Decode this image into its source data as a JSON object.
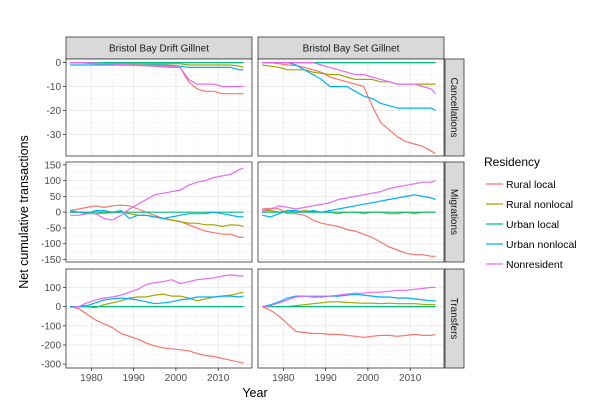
{
  "chart_data": {
    "type": "line",
    "ylabel": "Net cumulative transactions",
    "xlabel": "Year",
    "xlim": [
      1974,
      2018
    ],
    "x_ticks": [
      1980,
      1990,
      2000,
      2010
    ],
    "x_tick_labels": [
      "1980",
      "1990",
      "2000",
      "2010"
    ],
    "grid": true,
    "columns": [
      "Bristol Bay Drift Gillnet",
      "Bristol Bay Set Gillnet"
    ],
    "rows": [
      {
        "name": "Cancellations",
        "ylim": [
          -39,
          1.5
        ],
        "y_ticks": [
          0,
          -10,
          -20,
          -30
        ],
        "y_tick_labels": [
          "0",
          "-10",
          "-20",
          "-30"
        ]
      },
      {
        "name": "Migrations",
        "ylim": [
          -158,
          159
        ],
        "y_ticks": [
          150,
          100,
          50,
          0,
          -50,
          -100,
          -150
        ],
        "y_tick_labels": [
          "150",
          "100",
          "50",
          "0",
          "-50",
          "-100",
          "-150"
        ]
      },
      {
        "name": "Transfers",
        "ylim": [
          -320,
          196
        ],
        "y_ticks": [
          100,
          0,
          -100,
          -200,
          -300
        ],
        "y_tick_labels": [
          "100",
          "0",
          "-100",
          "-200",
          "-300"
        ]
      }
    ],
    "legend": {
      "title": "Residency",
      "position": "right",
      "entries": [
        "Rural local",
        "Rural nonlocal",
        "Urban local",
        "Urban nonlocal",
        "Nonresident"
      ],
      "colors": [
        "#F8766D",
        "#A3A500",
        "#00BF7D",
        "#00B0F6",
        "#E76BF3"
      ]
    },
    "x": [
      1975,
      1977,
      1979,
      1981,
      1983,
      1985,
      1987,
      1989,
      1991,
      1993,
      1995,
      1997,
      1999,
      2001,
      2003,
      2005,
      2007,
      2009,
      2011,
      2013,
      2015,
      2016
    ],
    "panels": [
      {
        "row": "Cancellations",
        "column": "Bristol Bay Drift Gillnet",
        "series": [
          {
            "name": "Rural local",
            "values": [
              0,
              0,
              -0.3,
              -0.5,
              -0.6,
              -0.8,
              -1,
              -1.1,
              -1.2,
              -1.4,
              -1.6,
              -1.8,
              -2,
              -2,
              -8,
              -11,
              -12,
              -12,
              -13,
              -13,
              -13,
              -13
            ]
          },
          {
            "name": "Rural nonlocal",
            "values": [
              0,
              0,
              0,
              -0.2,
              -0.3,
              -0.4,
              -0.5,
              -0.5,
              -0.5,
              -0.5,
              -0.5,
              -0.5,
              -0.5,
              -0.5,
              -1,
              -1,
              -1,
              -1,
              -1,
              -1,
              -1.5,
              -2
            ]
          },
          {
            "name": "Urban local",
            "values": [
              0,
              0,
              0,
              0,
              0,
              0,
              0,
              0,
              0,
              0,
              0,
              0,
              0,
              0,
              0,
              0,
              0,
              0,
              0,
              0,
              0,
              0
            ]
          },
          {
            "name": "Urban nonlocal",
            "values": [
              -1,
              -1,
              -1,
              -1,
              -1,
              -1,
              -1,
              -1,
              -1,
              -1,
              -1,
              -1,
              -1.2,
              -1.5,
              -2,
              -2,
              -2,
              -2,
              -2,
              -2,
              -3,
              -3
            ]
          },
          {
            "name": "Nonresident",
            "values": [
              0,
              0,
              0,
              -0.2,
              -0.4,
              -0.6,
              -0.8,
              -1,
              -1,
              -1.2,
              -1.4,
              -1.5,
              -1.5,
              -2,
              -7,
              -9,
              -9,
              -9,
              -10,
              -10,
              -10,
              -10
            ]
          }
        ]
      },
      {
        "row": "Cancellations",
        "column": "Bristol Bay Set Gillnet",
        "series": [
          {
            "name": "Rural local",
            "values": [
              0,
              0,
              -0.5,
              -1,
              -1.2,
              -2,
              -3,
              -4,
              -6,
              -7,
              -8,
              -9,
              -10,
              -18,
              -25,
              -28,
              -31,
              -33,
              -34,
              -35,
              -37,
              -38
            ]
          },
          {
            "name": "Rural nonlocal",
            "values": [
              -1,
              -1.5,
              -2,
              -3,
              -3,
              -3,
              -4,
              -4.5,
              -5,
              -5,
              -6,
              -7,
              -7,
              -7,
              -8,
              -8,
              -9,
              -9,
              -9,
              -9,
              -9,
              -9
            ]
          },
          {
            "name": "Urban local",
            "values": [
              0,
              0,
              0,
              0,
              0,
              0,
              0,
              0,
              0,
              0,
              0,
              0,
              0,
              0,
              0,
              0,
              0,
              0,
              0,
              0,
              0,
              0
            ]
          },
          {
            "name": "Urban nonlocal",
            "values": [
              0,
              0,
              0,
              0,
              -1,
              -3,
              -5,
              -7,
              -10,
              -10,
              -10,
              -12,
              -14,
              -15,
              -17,
              -18,
              -19,
              -19,
              -19,
              -19,
              -19,
              -20
            ]
          },
          {
            "name": "Nonresident",
            "values": [
              0,
              0,
              0,
              0,
              0,
              0,
              0,
              -1,
              -2,
              -3,
              -4,
              -5,
              -5,
              -6,
              -7,
              -8,
              -9,
              -9,
              -9,
              -10,
              -11,
              -13
            ]
          }
        ]
      },
      {
        "row": "Migrations",
        "column": "Bristol Bay Drift Gillnet",
        "series": [
          {
            "name": "Rural local",
            "values": [
              5,
              10,
              15,
              20,
              15,
              20,
              22,
              20,
              10,
              0,
              -10,
              -20,
              -25,
              -30,
              -40,
              -50,
              -60,
              -65,
              -70,
              -70,
              -80,
              -80
            ]
          },
          {
            "name": "Rural nonlocal",
            "values": [
              0,
              0,
              -2,
              -5,
              -3,
              -2,
              0,
              -5,
              -10,
              -10,
              -15,
              -20,
              -25,
              -30,
              -35,
              -35,
              -40,
              -40,
              -45,
              -40,
              -42,
              -45
            ]
          },
          {
            "name": "Urban local",
            "values": [
              0,
              0,
              0,
              0,
              0,
              0,
              0,
              0,
              0,
              0,
              0,
              0,
              0,
              0,
              0,
              0,
              0,
              0,
              0,
              0,
              0,
              0
            ]
          },
          {
            "name": "Urban nonlocal",
            "values": [
              5,
              0,
              -5,
              5,
              5,
              0,
              5,
              -20,
              -10,
              -10,
              -15,
              -20,
              -15,
              -10,
              -5,
              -5,
              -5,
              0,
              -5,
              -10,
              -15,
              -15
            ]
          },
          {
            "name": "Nonresident",
            "values": [
              -10,
              -10,
              -5,
              -5,
              -20,
              -25,
              -10,
              10,
              25,
              40,
              55,
              60,
              65,
              70,
              85,
              95,
              100,
              110,
              115,
              120,
              135,
              140
            ]
          }
        ]
      },
      {
        "row": "Migrations",
        "column": "Bristol Bay Set Gillnet",
        "series": [
          {
            "name": "Rural local",
            "values": [
              10,
              12,
              10,
              -5,
              -5,
              -10,
              -25,
              -35,
              -40,
              -45,
              -55,
              -60,
              -70,
              -80,
              -95,
              -110,
              -120,
              -130,
              -135,
              -135,
              -140,
              -140
            ]
          },
          {
            "name": "Rural nonlocal",
            "values": [
              5,
              5,
              0,
              5,
              0,
              5,
              2,
              0,
              0,
              -5,
              0,
              0,
              -5,
              0,
              0,
              -5,
              -5,
              0,
              -5,
              0,
              0,
              0
            ]
          },
          {
            "name": "Urban local",
            "values": [
              0,
              0,
              0,
              0,
              0,
              0,
              0,
              0,
              0,
              0,
              0,
              0,
              0,
              0,
              0,
              0,
              0,
              0,
              0,
              0,
              0,
              0
            ]
          },
          {
            "name": "Urban nonlocal",
            "values": [
              -10,
              -15,
              -5,
              5,
              5,
              0,
              5,
              0,
              5,
              10,
              15,
              20,
              25,
              30,
              35,
              40,
              45,
              50,
              55,
              50,
              45,
              40
            ]
          },
          {
            "name": "Nonresident",
            "values": [
              5,
              10,
              20,
              15,
              10,
              15,
              20,
              25,
              30,
              40,
              45,
              50,
              55,
              60,
              65,
              75,
              80,
              85,
              90,
              95,
              95,
              100
            ]
          }
        ]
      },
      {
        "row": "Transfers",
        "column": "Bristol Bay Drift Gillnet",
        "series": [
          {
            "name": "Rural local",
            "values": [
              0,
              -10,
              -40,
              -70,
              -90,
              -110,
              -140,
              -155,
              -170,
              -190,
              -205,
              -215,
              -220,
              -225,
              -230,
              -245,
              -255,
              -260,
              -270,
              -280,
              -290,
              -295
            ]
          },
          {
            "name": "Rural nonlocal",
            "values": [
              0,
              0,
              0,
              -5,
              10,
              20,
              30,
              45,
              50,
              50,
              60,
              65,
              55,
              55,
              45,
              30,
              40,
              50,
              55,
              60,
              70,
              75
            ]
          },
          {
            "name": "Urban local",
            "values": [
              0,
              0,
              0,
              0,
              0,
              0,
              0,
              0,
              0,
              0,
              0,
              0,
              0,
              0,
              0,
              0,
              0,
              0,
              0,
              0,
              0,
              0
            ]
          },
          {
            "name": "Urban nonlocal",
            "values": [
              0,
              0,
              5,
              20,
              35,
              40,
              45,
              40,
              35,
              25,
              15,
              20,
              25,
              35,
              40,
              50,
              50,
              50,
              55,
              55,
              50,
              55
            ]
          },
          {
            "name": "Nonresident",
            "values": [
              -5,
              0,
              20,
              35,
              45,
              50,
              60,
              75,
              90,
              115,
              125,
              130,
              140,
              120,
              130,
              140,
              145,
              150,
              160,
              165,
              160,
              160
            ]
          }
        ]
      },
      {
        "row": "Transfers",
        "column": "Bristol Bay Set Gillnet",
        "series": [
          {
            "name": "Rural local",
            "values": [
              0,
              -20,
              -50,
              -90,
              -130,
              -135,
              -140,
              -140,
              -145,
              -145,
              -150,
              -155,
              -160,
              -155,
              -150,
              -150,
              -155,
              -150,
              -145,
              -150,
              -150,
              -145
            ]
          },
          {
            "name": "Rural nonlocal",
            "values": [
              0,
              0,
              0,
              0,
              5,
              10,
              15,
              20,
              25,
              25,
              22,
              20,
              18,
              18,
              15,
              18,
              15,
              15,
              15,
              12,
              10,
              10
            ]
          },
          {
            "name": "Urban local",
            "values": [
              0,
              0,
              0,
              0,
              0,
              0,
              0,
              0,
              0,
              0,
              0,
              0,
              0,
              0,
              0,
              0,
              0,
              0,
              0,
              0,
              0,
              0
            ]
          },
          {
            "name": "Urban nonlocal",
            "values": [
              0,
              10,
              25,
              45,
              55,
              55,
              50,
              50,
              55,
              55,
              60,
              65,
              60,
              55,
              50,
              50,
              45,
              45,
              40,
              35,
              30,
              30
            ]
          },
          {
            "name": "Nonresident",
            "values": [
              0,
              5,
              20,
              35,
              50,
              55,
              55,
              55,
              55,
              60,
              65,
              70,
              70,
              75,
              75,
              80,
              85,
              85,
              90,
              95,
              100,
              100
            ]
          }
        ]
      }
    ]
  }
}
